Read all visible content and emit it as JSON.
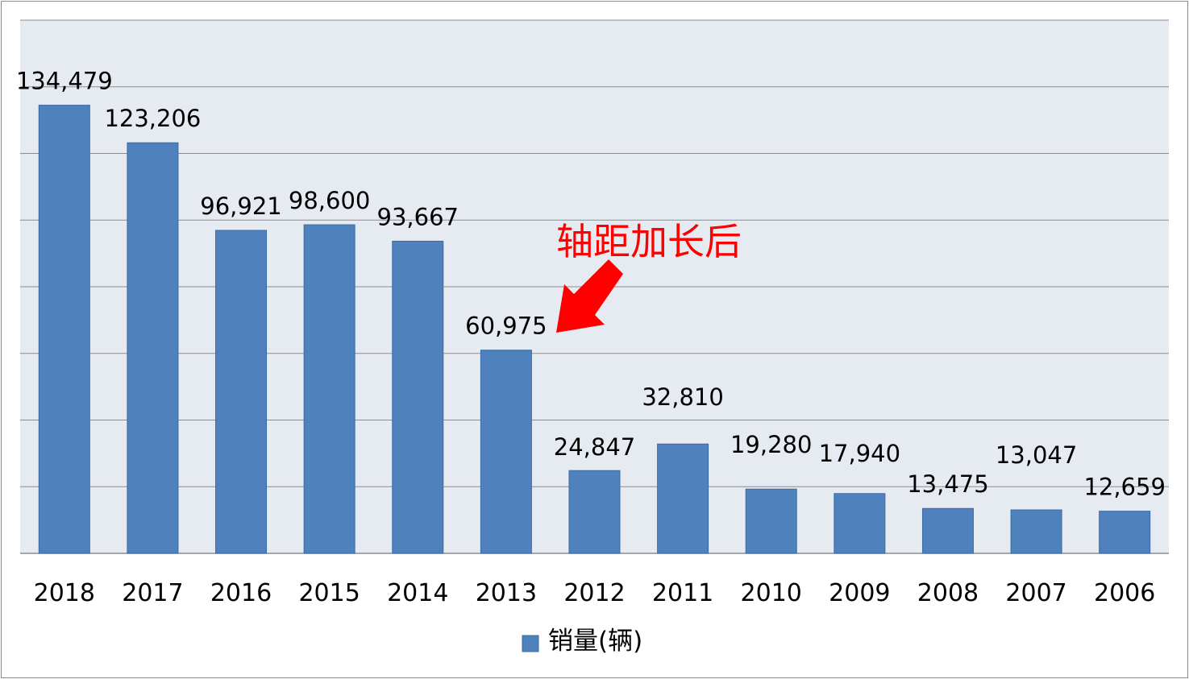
{
  "chart_data": {
    "type": "bar",
    "categories": [
      "2018",
      "2017",
      "2016",
      "2015",
      "2014",
      "2013",
      "2012",
      "2011",
      "2010",
      "2009",
      "2008",
      "2007",
      "2006"
    ],
    "series": [
      {
        "name": "销量(辆)",
        "values": [
          134479,
          123206,
          96921,
          98600,
          93667,
          60975,
          24847,
          32810,
          19280,
          17940,
          13475,
          13047,
          12659
        ],
        "labels": [
          "134,479",
          "123,206",
          "96,921",
          "98,600",
          "93,667",
          "60,975",
          "24,847",
          "32,810",
          "19,280",
          "17,940",
          "13,475",
          "13,047",
          "12,659"
        ]
      }
    ],
    "ylim": [
      0,
      160000
    ],
    "y_gridlines": [
      20000,
      40000,
      60000,
      80000,
      100000,
      120000,
      140000,
      160000
    ],
    "grid": true,
    "y_axis_visible": false,
    "legend": {
      "position": "bottom",
      "label": "销量(辆)"
    },
    "annotation": {
      "text": "轴距加长后",
      "points_to": "2013",
      "color": "#ff0000"
    },
    "colors": {
      "bar": "#4f81bd",
      "bar_edge": "#3a6ba5",
      "plot_bg": "#e6ebf2",
      "grid": "#8c8c8c"
    }
  }
}
